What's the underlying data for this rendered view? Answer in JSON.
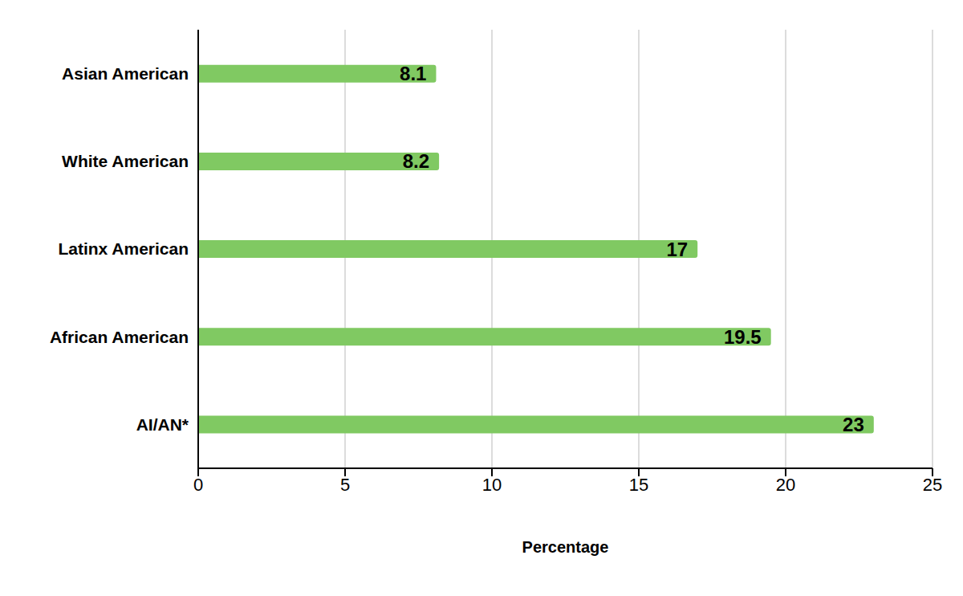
{
  "chart_data": {
    "type": "bar",
    "orientation": "horizontal",
    "categories": [
      "Asian American",
      "White American",
      "Latinx American",
      "African American",
      "AI/AN*"
    ],
    "values": [
      8.1,
      8.2,
      17,
      19.5,
      23
    ],
    "color": "#80c962",
    "xlim": [
      0,
      25
    ],
    "xticks": [
      0,
      5,
      10,
      15,
      20,
      25
    ],
    "xlabel": "Percentage",
    "grid": true,
    "data_labels": true
  }
}
